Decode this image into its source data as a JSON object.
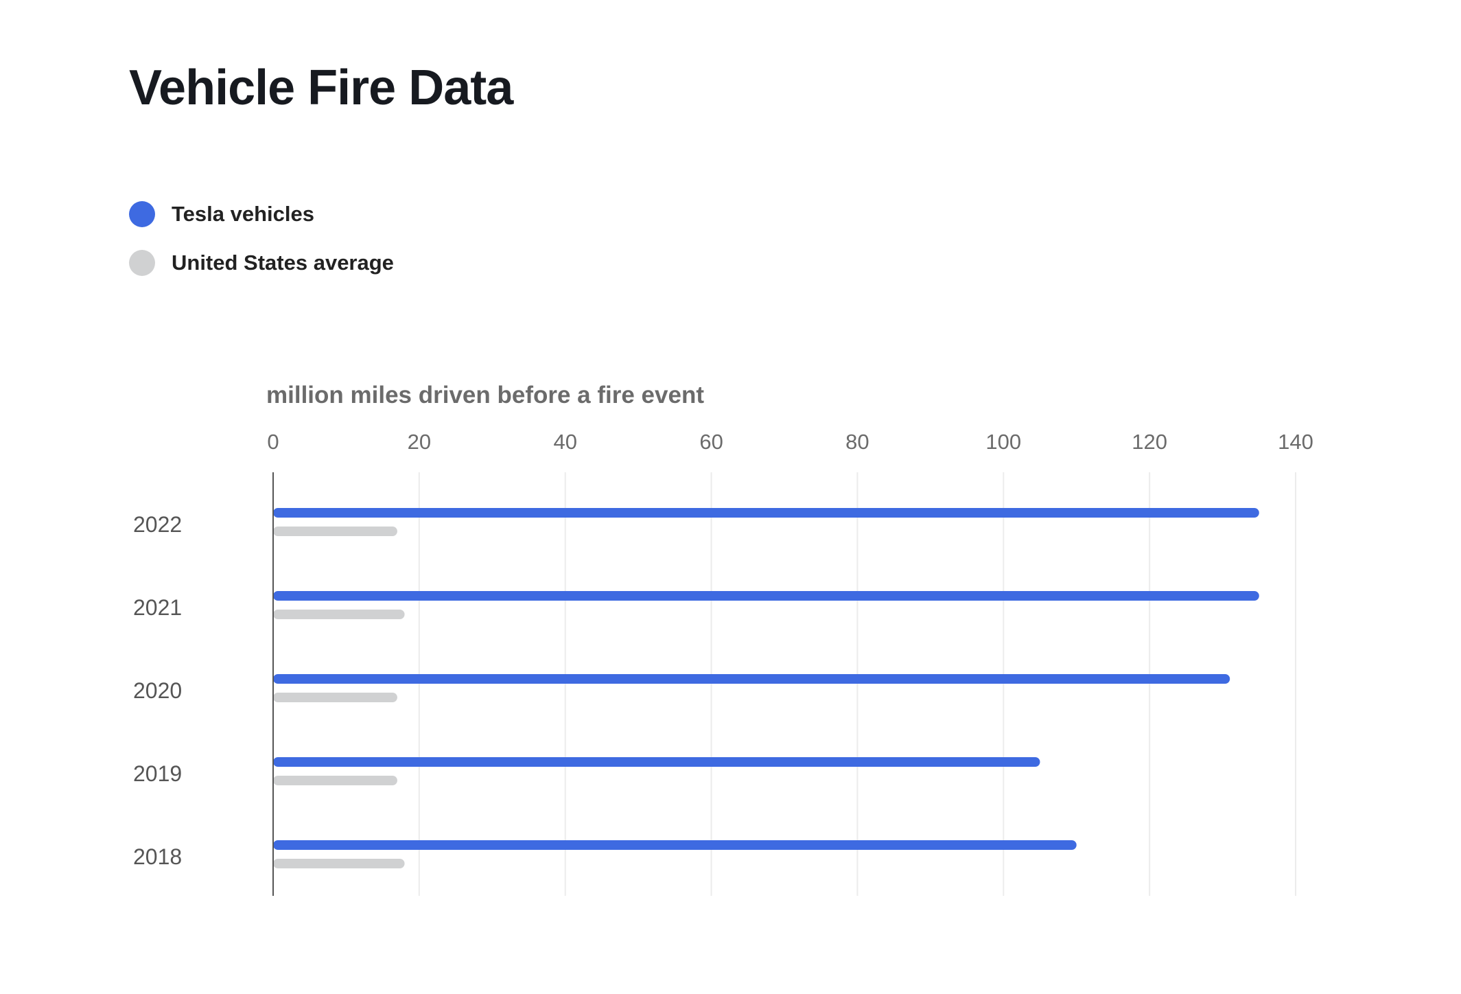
{
  "page": {
    "title": "Vehicle Fire Data"
  },
  "legend": {
    "items": [
      {
        "label": "Tesla vehicles",
        "color": "#3e6ae1"
      },
      {
        "label": "United States average",
        "color": "#d0d1d2"
      }
    ]
  },
  "chart_data": {
    "type": "bar",
    "orientation": "horizontal",
    "title": "Vehicle Fire Data",
    "xlabel": "million miles driven before a fire event",
    "ylabel": "",
    "xlim": [
      0,
      140
    ],
    "xticks": [
      "0",
      "20",
      "40",
      "60",
      "80",
      "100",
      "120",
      "140"
    ],
    "categories": [
      "2022",
      "2021",
      "2020",
      "2019",
      "2018"
    ],
    "series": [
      {
        "name": "Tesla vehicles",
        "color": "#3e6ae1",
        "values": [
          135,
          135,
          131,
          105,
          110
        ]
      },
      {
        "name": "United States average",
        "color": "#d0d1d2",
        "values": [
          17,
          18,
          17,
          17,
          18
        ]
      }
    ],
    "grid": true,
    "legend_position": "top-left"
  }
}
